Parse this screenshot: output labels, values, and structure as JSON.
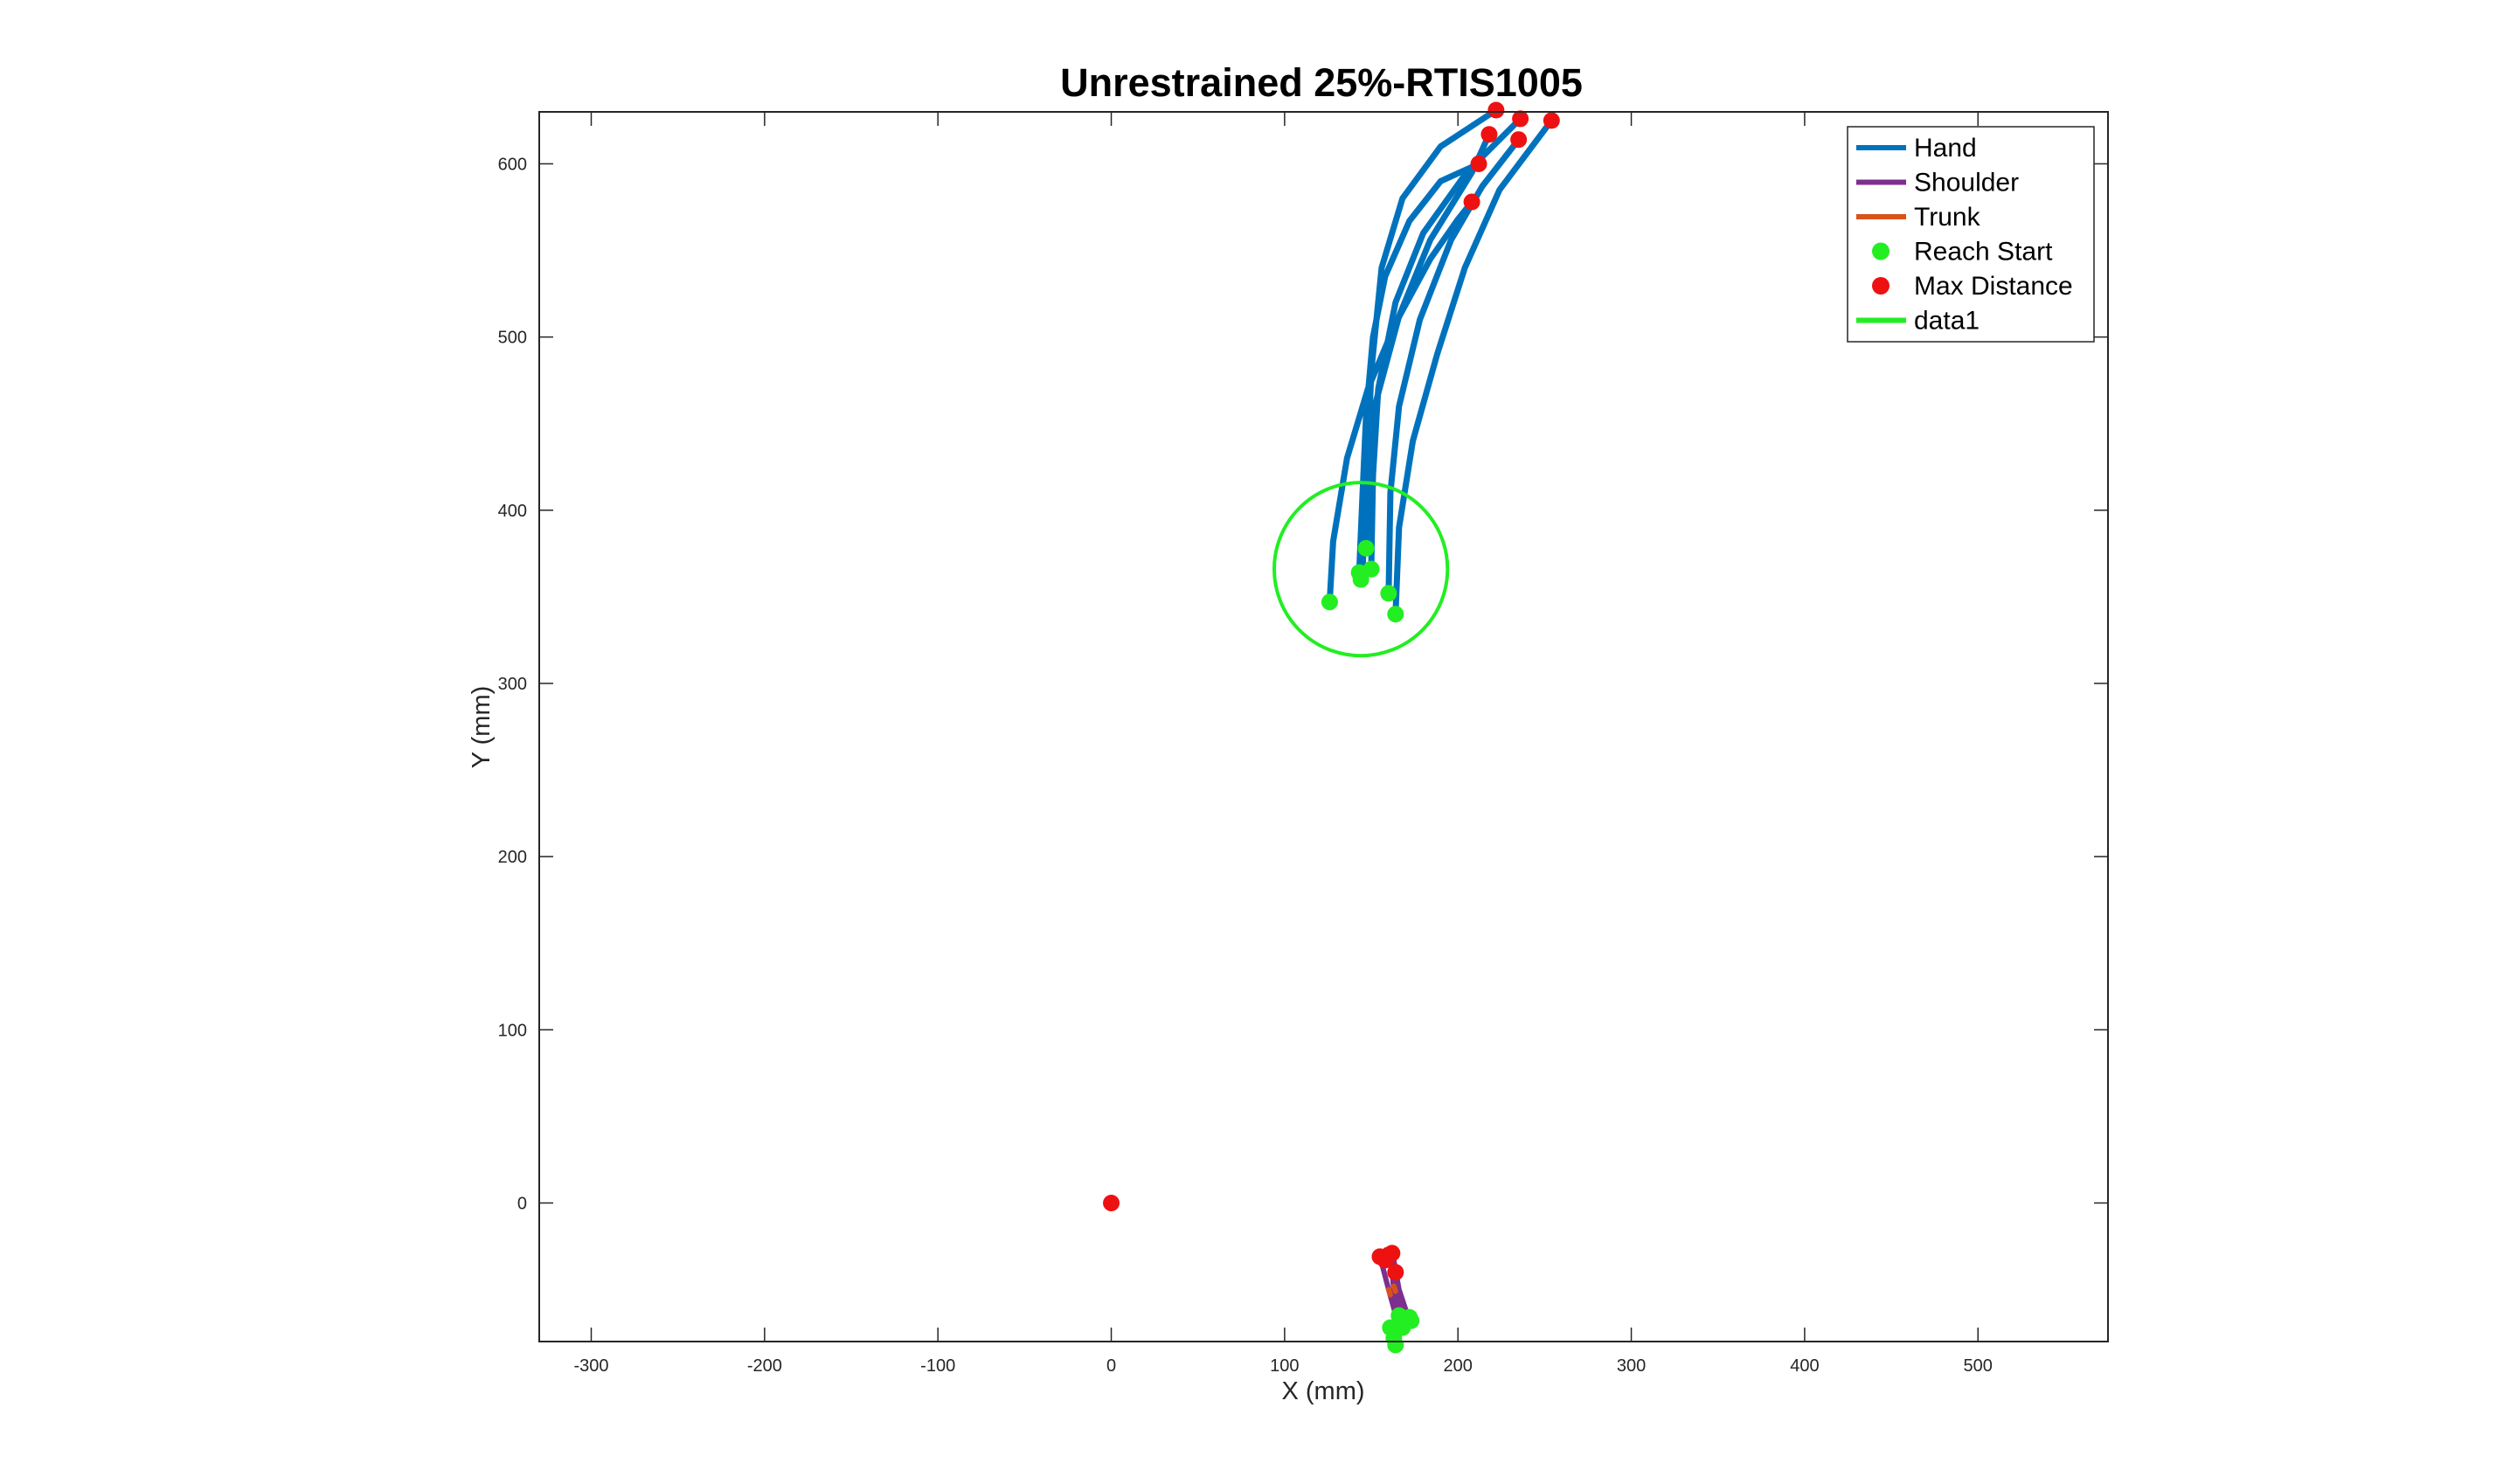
{
  "chart_data": {
    "type": "line",
    "title": "Unrestrained 25%-RTIS1005",
    "xlabel": "X (mm)",
    "ylabel": "Y (mm)",
    "xlim": [
      -330,
      575
    ],
    "ylim": [
      -80,
      630
    ],
    "xticks": [
      -300,
      -200,
      -100,
      0,
      100,
      200,
      300,
      400,
      500
    ],
    "yticks": [
      0,
      100,
      200,
      300,
      400,
      500,
      600
    ],
    "grid": false,
    "legend_position": "top-right",
    "colors": {
      "hand": "#0072BD",
      "shoulder": "#7E2F8E",
      "trunk": "#D95319",
      "reach_start": "#22EE22",
      "max_distance": "#EE1111",
      "circle": "#22EE22"
    },
    "legend": [
      {
        "name": "Hand",
        "kind": "line",
        "color": "#0072BD"
      },
      {
        "name": "Shoulder",
        "kind": "line",
        "color": "#7E2F8E"
      },
      {
        "name": "Trunk",
        "kind": "line",
        "color": "#D95319"
      },
      {
        "name": "Reach Start",
        "kind": "marker",
        "color": "#22EE22"
      },
      {
        "name": "Max Distance",
        "kind": "marker",
        "color": "#EE1111"
      },
      {
        "name": "data1",
        "kind": "line",
        "color": "#22EE22"
      }
    ],
    "series": [
      {
        "name": "Hand",
        "color": "#0072BD",
        "trajectories": [
          [
            [
              126,
              347
            ],
            [
              128,
              382
            ],
            [
              136,
              430
            ],
            [
              148,
              470
            ],
            [
              164,
              508
            ],
            [
              184,
              545
            ],
            [
              200,
              568
            ],
            [
              208,
              578
            ]
          ],
          [
            [
              143,
              364
            ],
            [
              145,
              410
            ],
            [
              147,
              455
            ],
            [
              151,
              500
            ],
            [
              158,
              535
            ],
            [
              172,
              567
            ],
            [
              190,
              590
            ],
            [
              212,
              600
            ]
          ],
          [
            [
              147,
              378
            ],
            [
              148,
              430
            ],
            [
              150,
              480
            ],
            [
              156,
              540
            ],
            [
              168,
              580
            ],
            [
              190,
              610
            ],
            [
              222,
              631
            ]
          ],
          [
            [
              150,
              366
            ],
            [
              151,
              420
            ],
            [
              154,
              470
            ],
            [
              164,
              520
            ],
            [
              180,
              560
            ],
            [
              205,
              595
            ],
            [
              236,
              626
            ]
          ],
          [
            [
              145,
              360
            ],
            [
              146,
              410
            ],
            [
              152,
              460
            ],
            [
              166,
              512
            ],
            [
              184,
              556
            ],
            [
              208,
              595
            ],
            [
              218,
              617
            ]
          ],
          [
            [
              160,
              352
            ],
            [
              161,
              410
            ],
            [
              166,
              460
            ],
            [
              178,
              510
            ],
            [
              196,
              556
            ],
            [
              214,
              587
            ],
            [
              235,
              614
            ]
          ],
          [
            [
              164,
              340
            ],
            [
              166,
              390
            ],
            [
              174,
              440
            ],
            [
              188,
              490
            ],
            [
              204,
              540
            ],
            [
              224,
              585
            ],
            [
              254,
              625
            ]
          ]
        ]
      },
      {
        "name": "Shoulder",
        "color": "#7E2F8E",
        "trajectories": [
          [
            [
              155,
              -31
            ],
            [
              160,
              -50
            ],
            [
              165,
              -68
            ]
          ],
          [
            [
              160,
              -30
            ],
            [
              164,
              -48
            ],
            [
              168,
              -65
            ]
          ],
          [
            [
              163,
              -33
            ],
            [
              166,
              -50
            ],
            [
              170,
              -62
            ]
          ],
          [
            [
              164,
              -40
            ],
            [
              166,
              -55
            ],
            [
              168,
              -72
            ]
          ],
          [
            [
              162,
              -38
            ],
            [
              164,
              -57
            ],
            [
              163,
              -78
            ]
          ],
          [
            [
              161,
              -30
            ],
            [
              163,
              -50
            ],
            [
              172,
              -66
            ]
          ],
          [
            [
              163,
              -45
            ],
            [
              165,
              -60
            ],
            [
              164,
              -82
            ]
          ]
        ]
      },
      {
        "name": "Trunk",
        "color": "#D95319",
        "trajectories": [
          [
            [
              160,
              -50
            ],
            [
              161,
              -53
            ]
          ],
          [
            [
              163,
              -48
            ],
            [
              164,
              -51
            ]
          ]
        ]
      },
      {
        "name": "Reach Start",
        "color": "#22EE22",
        "points": [
          [
            126,
            347
          ],
          [
            143,
            364
          ],
          [
            144,
            360
          ],
          [
            147,
            378
          ],
          [
            150,
            366
          ],
          [
            160,
            352
          ],
          [
            164,
            340
          ],
          [
            172,
            -66
          ],
          [
            166,
            -65
          ],
          [
            168,
            -72
          ],
          [
            163,
            -78
          ],
          [
            161,
            -72
          ],
          [
            173,
            -68
          ],
          [
            164,
            -82
          ]
        ]
      },
      {
        "name": "Max Distance",
        "color": "#EE1111",
        "points": [
          [
            222,
            631
          ],
          [
            236,
            626
          ],
          [
            254,
            625
          ],
          [
            218,
            617
          ],
          [
            235,
            614
          ],
          [
            212,
            600
          ],
          [
            208,
            578
          ],
          [
            155,
            -31
          ],
          [
            160,
            -30
          ],
          [
            162,
            -29
          ],
          [
            164,
            -40
          ],
          [
            158,
            -33
          ],
          [
            0,
            0
          ]
        ]
      },
      {
        "name": "data1",
        "color": "#22EE22",
        "circle": {
          "center": [
            144,
            366
          ],
          "radius": 50
        }
      }
    ]
  }
}
